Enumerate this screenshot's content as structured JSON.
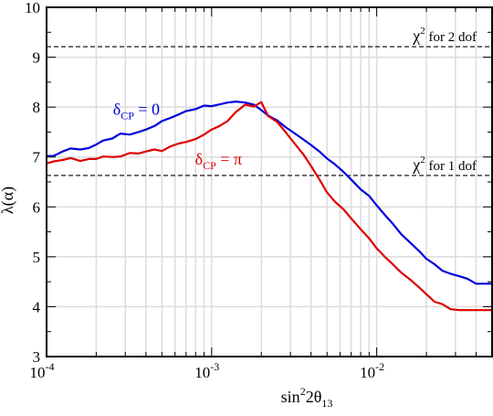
{
  "chart_data": {
    "type": "line",
    "xlabel": {
      "base": "sin",
      "sup": "2",
      "mid": "2θ",
      "sub": "13"
    },
    "ylabel": "λ(α)",
    "x_scale": "log",
    "xlim": [
      0.0001,
      0.05
    ],
    "ylim": [
      3,
      10
    ],
    "grid": true,
    "y_ticks": [
      "3",
      "4",
      "5",
      "6",
      "7",
      "8",
      "9",
      "10"
    ],
    "x_ticks": [
      {
        "value": 0.0001,
        "base": "10",
        "exp": "-4"
      },
      {
        "value": 0.001,
        "base": "10",
        "exp": "-3"
      },
      {
        "value": 0.01,
        "base": "10",
        "exp": "-2"
      }
    ],
    "reference_lines": [
      {
        "y": 9.21,
        "label": {
          "chi": "χ",
          "sup": "2",
          "rest": " for 2 dof"
        }
      },
      {
        "y": 6.63,
        "label": {
          "chi": "χ",
          "sup": "2",
          "rest": " for 1 dof"
        }
      }
    ],
    "series": [
      {
        "label": {
          "main": "δ",
          "sub": "CP",
          "rest": " = 0"
        },
        "color": "#0000dd",
        "x": [
          0.0001,
          0.00011,
          0.000125,
          0.00014,
          0.00016,
          0.00018,
          0.0002,
          0.00022,
          0.00025,
          0.00028,
          0.00032,
          0.00036,
          0.0004,
          0.00045,
          0.0005,
          0.00056,
          0.00063,
          0.0007,
          0.0008,
          0.0009,
          0.001,
          0.0011,
          0.00125,
          0.0014,
          0.0016,
          0.0018,
          0.002,
          0.0022,
          0.0025,
          0.0028,
          0.0032,
          0.0036,
          0.004,
          0.0045,
          0.005,
          0.0056,
          0.0063,
          0.007,
          0.008,
          0.009,
          0.01,
          0.0112,
          0.0126,
          0.0141,
          0.016,
          0.018,
          0.02,
          0.0224,
          0.025,
          0.028,
          0.0316,
          0.0355,
          0.04,
          0.045,
          0.05
        ],
        "y": [
          7.02,
          7.02,
          7.11,
          7.17,
          7.15,
          7.18,
          7.25,
          7.33,
          7.37,
          7.47,
          7.45,
          7.5,
          7.55,
          7.62,
          7.72,
          7.78,
          7.85,
          7.92,
          7.96,
          8.03,
          8.02,
          8.05,
          8.09,
          8.11,
          8.09,
          8.05,
          7.94,
          7.83,
          7.73,
          7.6,
          7.47,
          7.35,
          7.24,
          7.11,
          6.97,
          6.85,
          6.7,
          6.55,
          6.35,
          6.22,
          6.03,
          5.84,
          5.65,
          5.45,
          5.28,
          5.12,
          4.96,
          4.85,
          4.72,
          4.66,
          4.61,
          4.56,
          4.46,
          4.46,
          4.46
        ]
      },
      {
        "label": {
          "main": "δ",
          "sub": "CP",
          "rest": " = π"
        },
        "color": "#dd0000",
        "x": [
          0.0001,
          0.00011,
          0.000125,
          0.00014,
          0.00016,
          0.00018,
          0.0002,
          0.00022,
          0.00025,
          0.00028,
          0.00032,
          0.00036,
          0.0004,
          0.00045,
          0.0005,
          0.00056,
          0.00063,
          0.0007,
          0.0008,
          0.0009,
          0.001,
          0.0011,
          0.00125,
          0.0014,
          0.0016,
          0.0018,
          0.002,
          0.0022,
          0.0025,
          0.0028,
          0.0032,
          0.0036,
          0.004,
          0.0045,
          0.005,
          0.0056,
          0.0063,
          0.007,
          0.008,
          0.009,
          0.01,
          0.0112,
          0.0126,
          0.0141,
          0.016,
          0.018,
          0.02,
          0.0224,
          0.025,
          0.028,
          0.0316,
          0.0355,
          0.04,
          0.045,
          0.05
        ],
        "y": [
          6.87,
          6.91,
          6.94,
          6.98,
          6.92,
          6.96,
          6.96,
          7.01,
          7.0,
          7.01,
          7.08,
          7.07,
          7.11,
          7.15,
          7.12,
          7.21,
          7.27,
          7.3,
          7.36,
          7.45,
          7.55,
          7.61,
          7.72,
          7.9,
          8.05,
          8.01,
          8.1,
          7.82,
          7.7,
          7.5,
          7.26,
          7.05,
          6.82,
          6.55,
          6.29,
          6.1,
          5.95,
          5.77,
          5.55,
          5.37,
          5.17,
          5.0,
          4.84,
          4.68,
          4.54,
          4.39,
          4.25,
          4.1,
          4.05,
          3.95,
          3.93,
          3.93,
          3.93,
          3.93,
          3.93
        ]
      }
    ],
    "annotation_positions": [
      {
        "series": 0,
        "x": 0.00035,
        "y": 7.85
      },
      {
        "series": 1,
        "x": 0.0011,
        "y": 6.85
      }
    ]
  }
}
